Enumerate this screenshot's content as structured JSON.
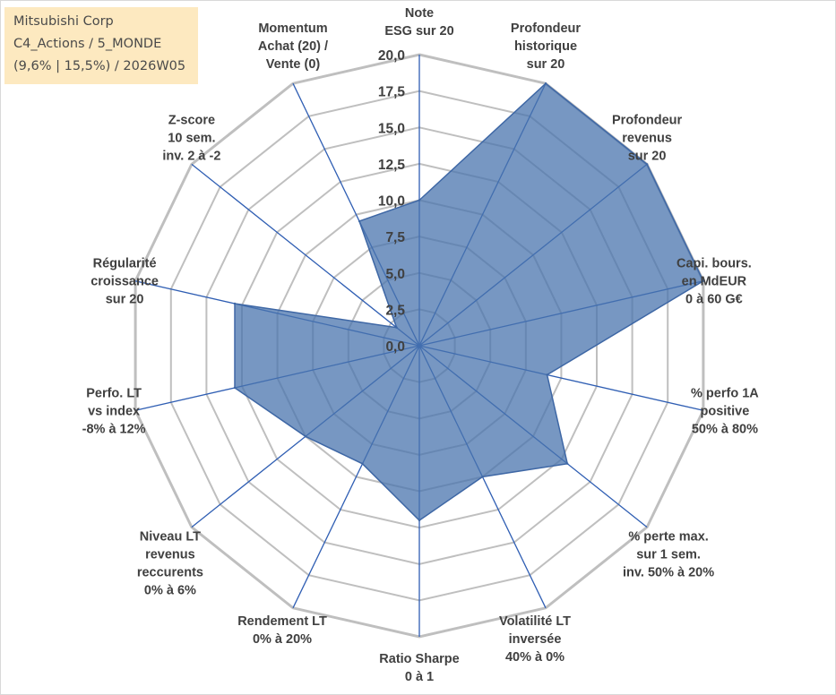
{
  "info_box": {
    "line1": "Mitsubishi Corp",
    "line2": "C4_Actions / 5_MONDE",
    "line3": "(9,6% | 15,5%) / 2026W05"
  },
  "colors": {
    "fill": "#4a74ad",
    "stroke": "#3e67a5",
    "spoke": "#2f5eb3",
    "grid": "#bfbfbf",
    "text": "#404040",
    "info_bg": "#fde9c0"
  },
  "chart_data": {
    "type": "radar",
    "title": "",
    "rmin": 0,
    "rmax": 20,
    "grid_step": 2.5,
    "tick_labels": [
      "0,0",
      "2,5",
      "5,0",
      "7,5",
      "10,0",
      "12,5",
      "15,0",
      "17,5",
      "20,0"
    ],
    "axes": [
      {
        "label": [
          "Note",
          "ESG sur 20"
        ],
        "value": 10.0
      },
      {
        "label": [
          "Profondeur",
          "historique",
          "sur 20"
        ],
        "value": 20.0
      },
      {
        "label": [
          "Profondeur",
          "revenus",
          "sur 20"
        ],
        "value": 20.0
      },
      {
        "label": [
          "Capi. bours.",
          "en MdEUR",
          "0 à 60 G€"
        ],
        "value": 20.0
      },
      {
        "label": [
          "% perfo 1A",
          "positive",
          "50% à 80%"
        ],
        "value": 9.0
      },
      {
        "label": [
          "% perte max.",
          "sur 1 sem.",
          "inv. 50% à 20%"
        ],
        "value": 13.0
      },
      {
        "label": [
          "Volatilité LT",
          "inversée",
          "40% à 0%"
        ],
        "value": 10.0
      },
      {
        "label": [
          "Ratio Sharpe",
          "0 à 1"
        ],
        "value": 12.0
      },
      {
        "label": [
          "Rendement LT",
          "0% à 20%"
        ],
        "value": 9.0
      },
      {
        "label": [
          "Niveau LT",
          "revenus",
          "reccurents",
          "0% à 6%"
        ],
        "value": 10.0
      },
      {
        "label": [
          "Perfo. LT",
          "vs index",
          "-8% à 12%"
        ],
        "value": 13.0
      },
      {
        "label": [
          "Régularité",
          "croissance",
          "sur 20"
        ],
        "value": 13.0
      },
      {
        "label": [
          "Z-score",
          "10 sem.",
          "inv. 2 à -2"
        ],
        "value": 2.0
      },
      {
        "label": [
          "Momentum",
          "Achat (20) /",
          "Vente (0)"
        ],
        "value": 9.5
      }
    ]
  }
}
